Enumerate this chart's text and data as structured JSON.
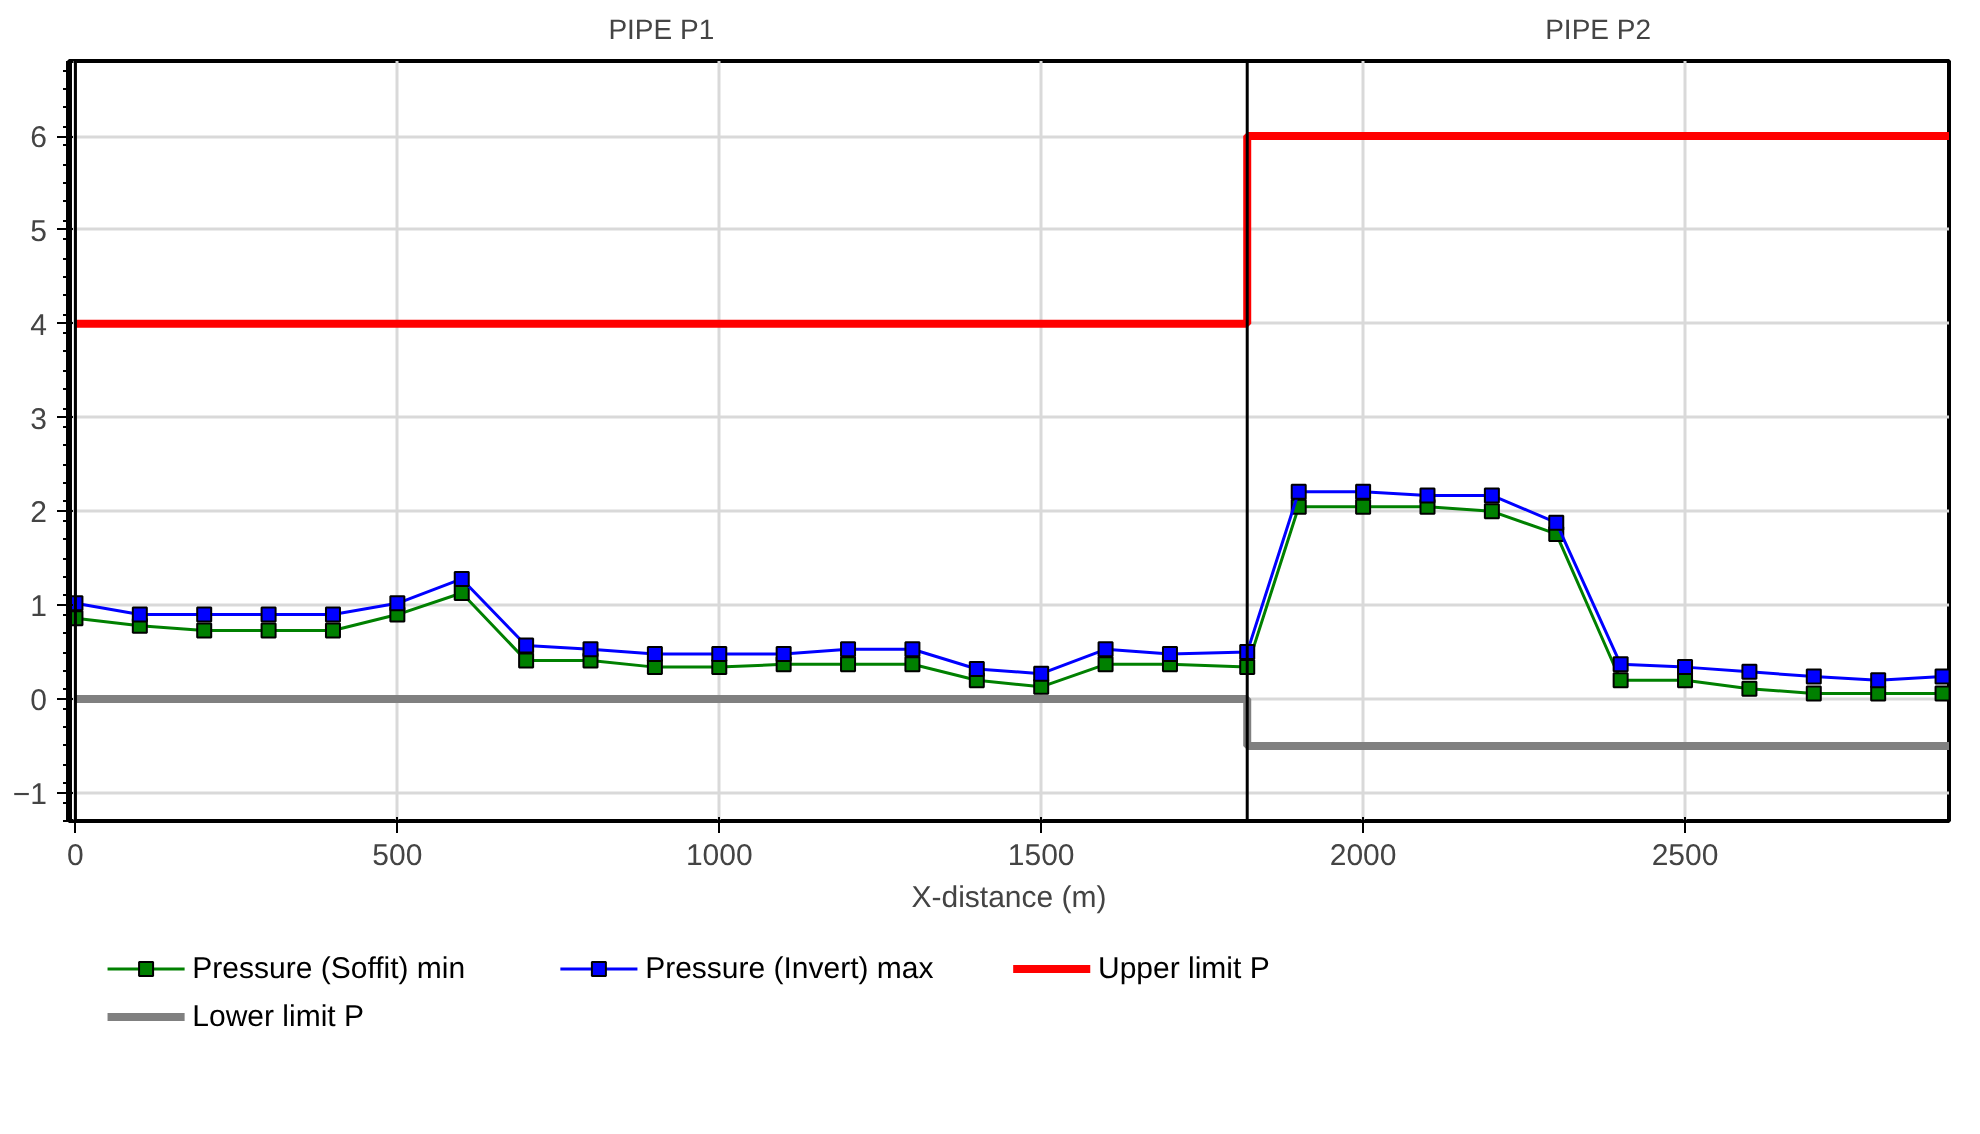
{
  "chart_data": {
    "type": "line",
    "xlabel": "X-distance (m)",
    "x": [
      0,
      100,
      200,
      300,
      400,
      500,
      600,
      700,
      800,
      900,
      1000,
      1100,
      1200,
      1300,
      1400,
      1500,
      1600,
      1700,
      1820,
      1900,
      2000,
      2100,
      2200,
      2300,
      2400,
      2500,
      2600,
      2700,
      2800,
      2900
    ],
    "series": [
      {
        "name": "Pressure (Soffit) min",
        "color": "#008000",
        "marker": "square",
        "values": [
          0.86,
          0.78,
          0.73,
          0.73,
          0.73,
          0.9,
          1.13,
          0.41,
          0.41,
          0.34,
          0.34,
          0.37,
          0.37,
          0.37,
          0.2,
          0.13,
          0.37,
          0.37,
          0.34,
          2.05,
          2.05,
          2.05,
          2.0,
          1.76,
          0.2,
          0.2,
          0.11,
          0.06,
          0.06,
          0.06
        ]
      },
      {
        "name": "Pressure (Invert) max",
        "color": "#0000ff",
        "marker": "square",
        "values": [
          1.02,
          0.9,
          0.9,
          0.9,
          0.9,
          1.02,
          1.28,
          0.57,
          0.53,
          0.48,
          0.48,
          0.48,
          0.53,
          0.53,
          0.32,
          0.27,
          0.53,
          0.48,
          0.5,
          2.21,
          2.21,
          2.17,
          2.17,
          1.88,
          0.37,
          0.34,
          0.29,
          0.24,
          0.2,
          0.24
        ]
      },
      {
        "name": "Upper limit P",
        "color": "#ff0000",
        "type": "step",
        "marker": "none",
        "x": [
          0,
          1820,
          2910
        ],
        "values": [
          4,
          6,
          6
        ]
      },
      {
        "name": "Lower limit P",
        "color": "#808080",
        "type": "step",
        "marker": "none",
        "x": [
          0,
          1820,
          2910
        ],
        "values": [
          0,
          -0.5,
          -0.5
        ]
      }
    ],
    "ref_lines": [
      {
        "axis": "x",
        "value": 0,
        "color": "#000000"
      },
      {
        "axis": "x",
        "value": 1820,
        "color": "#000000"
      }
    ],
    "annotations": [
      "PIPE P1",
      "PIPE P2"
    ],
    "xlim": [
      -10,
      2910
    ],
    "ylim": [
      -1.3,
      6.8
    ],
    "xticks": [
      0,
      500,
      1000,
      1500,
      2000,
      2500
    ],
    "yticks": [
      -1,
      0,
      1,
      2,
      3,
      4,
      5,
      6
    ],
    "grid": true,
    "legend": "bottom"
  }
}
